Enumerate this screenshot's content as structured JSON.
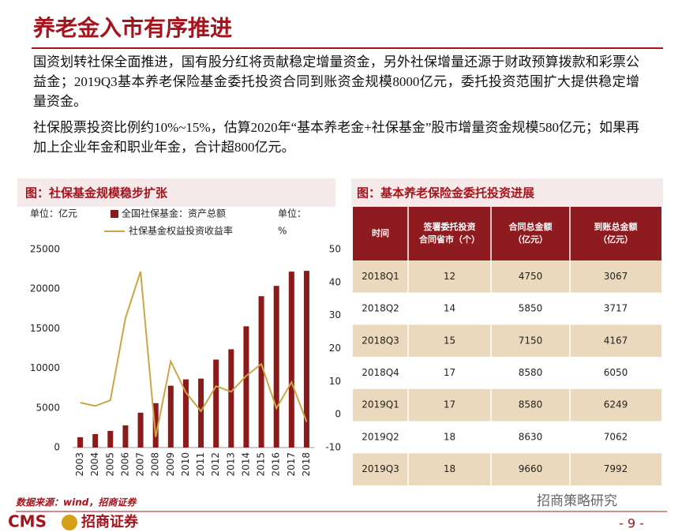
{
  "header": {
    "title": "养老金入市有序推进"
  },
  "paragraphs": [
    "国资划转社保全面推进，国有股分红将贡献稳定增量资金，另外社保增量还源于财政预算拨款和彩票公益金；2019Q3基本养老保险基金委托投资合同到账资金规模8000亿元，委托投资范围扩大提供稳定增量资金。",
    "社保股票投资比例约10%~15%，估算2020年“基本养老金+社保基金”股市增量资金规模580亿元；如果再加上企业年金和职业年金，合计超800亿元。"
  ],
  "chart_data": {
    "type": "bar_line",
    "title": "图：社保基金规模稳步扩张",
    "y_label": "单位：亿元",
    "y2_label_lines": [
      "单位：",
      "%"
    ],
    "categories": [
      "2003",
      "2004",
      "2005",
      "2006",
      "2007",
      "2008",
      "2009",
      "2010",
      "2011",
      "2012",
      "2013",
      "2014",
      "2015",
      "2016",
      "2017",
      "2018"
    ],
    "series": [
      {
        "name": "全国社保基金：资产总额",
        "color": "#8b1a1a",
        "kind": "bar",
        "values": [
          1300,
          1700,
          2100,
          2800,
          4400,
          5600,
          7800,
          8600,
          8700,
          11100,
          12400,
          15300,
          19100,
          20400,
          22200,
          22300
        ]
      },
      {
        "name": "社保基金权益投资收益率",
        "color": "#c9a646",
        "kind": "line",
        "axis": "y2",
        "values": [
          3.6,
          2.6,
          4.3,
          29.2,
          43.3,
          -6.8,
          16.1,
          6.7,
          1.0,
          8.6,
          6.9,
          11.7,
          15.3,
          1.9,
          9.8,
          -2.2
        ]
      }
    ],
    "ylim": [
      0,
      25000
    ],
    "yticks": [
      0,
      5000,
      10000,
      15000,
      20000,
      25000
    ],
    "y2lim": [
      -10,
      50
    ],
    "y2ticks": [
      -10,
      0,
      10,
      20,
      30,
      40,
      50
    ]
  },
  "table": {
    "title": "图：基本养老保险金委托投资进展",
    "header": [
      [
        "时间"
      ],
      [
        "签署委托投资",
        "合同省市（个）"
      ],
      [
        "合同总金额",
        "（亿元）"
      ],
      [
        "到账总金额",
        "（亿元）"
      ]
    ],
    "rows": [
      [
        "2018Q1",
        12,
        4750,
        3067
      ],
      [
        "2018Q2",
        14,
        5850,
        3717
      ],
      [
        "2018Q3",
        15,
        7150,
        4167
      ],
      [
        "2018Q4",
        17,
        8580,
        6050
      ],
      [
        "2019Q1",
        17,
        8580,
        6249
      ],
      [
        "2019Q2",
        18,
        8630,
        7062
      ],
      [
        "2019Q3",
        18,
        9660,
        7992
      ]
    ]
  },
  "footer": {
    "source": "数据来源：wind，招商证券",
    "logo": "CMS",
    "logo_name": "招商证券",
    "watermark": "招商策略研究",
    "page": "- 9 -"
  }
}
